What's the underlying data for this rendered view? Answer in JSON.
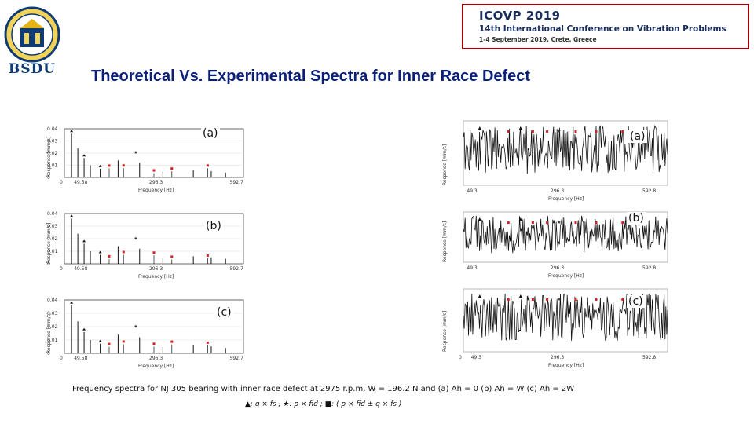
{
  "logo": {
    "text": "BSDU"
  },
  "conference": {
    "title": "ICOVP 2019",
    "subtitle": "14th International Conference on Vibration Problems",
    "dates": "1-4 September 2019, Crete, Greece"
  },
  "slide": {
    "title": "Theoretical Vs. Experimental Spectra for Inner Race Defect"
  },
  "colors": {
    "title": "#0a1f7a",
    "marker_red": "#d62020",
    "accent_border": "#a00000"
  },
  "left_plots": [
    {
      "label": "(a)",
      "ylabel": "Response [mm/s]",
      "xlabel": "Frequency [Hz]",
      "xticks": [
        "0",
        "49.58",
        "296.3",
        "592.7"
      ],
      "yticks": [
        "0",
        "0.01",
        "0.02",
        "0.03",
        "0.04"
      ]
    },
    {
      "label": "(b)",
      "ylabel": "Response [mm/s]",
      "xlabel": "Frequency [Hz]",
      "xticks": [
        "0",
        "49.58",
        "296.3",
        "592.7"
      ],
      "yticks": [
        "0",
        "0.01",
        "0.02",
        "0.03",
        "0.04"
      ]
    },
    {
      "label": "(c)",
      "ylabel": "Response [mm/s]",
      "xlabel": "Frequency [Hz]",
      "xticks": [
        "0",
        "49.58",
        "296.3",
        "592.7"
      ],
      "yticks": [
        "0",
        "0.01",
        "0.02",
        "0.03",
        "0.04"
      ]
    }
  ],
  "right_plots": [
    {
      "label": "(a)",
      "ylabel": "Response [mm/s]",
      "xlabel": "Frequency [Hz]",
      "xticks": [
        "49.3",
        "296.3",
        "592.8"
      ]
    },
    {
      "label": "(b)",
      "ylabel": "Response [mm/s]",
      "xlabel": "Frequency [Hz]",
      "xticks": [
        "49.3",
        "296.3",
        "592.8"
      ]
    },
    {
      "label": "(c)",
      "ylabel": "Response [mm/s]",
      "xlabel": "Frequency [Hz]",
      "xticks": [
        "0",
        "49.3",
        "296.3",
        "592.8"
      ]
    }
  ],
  "caption": "Frequency spectra for NJ 305 bearing with inner race defect at 2975 r.p.m, W = 196.2 N and (a) Ah = 0  (b) Ah = W (c) Ah = 2W",
  "legend": "▲: q × fs ;  ★: p × fid ;  ■: ( p × fid ± q × fs )"
}
